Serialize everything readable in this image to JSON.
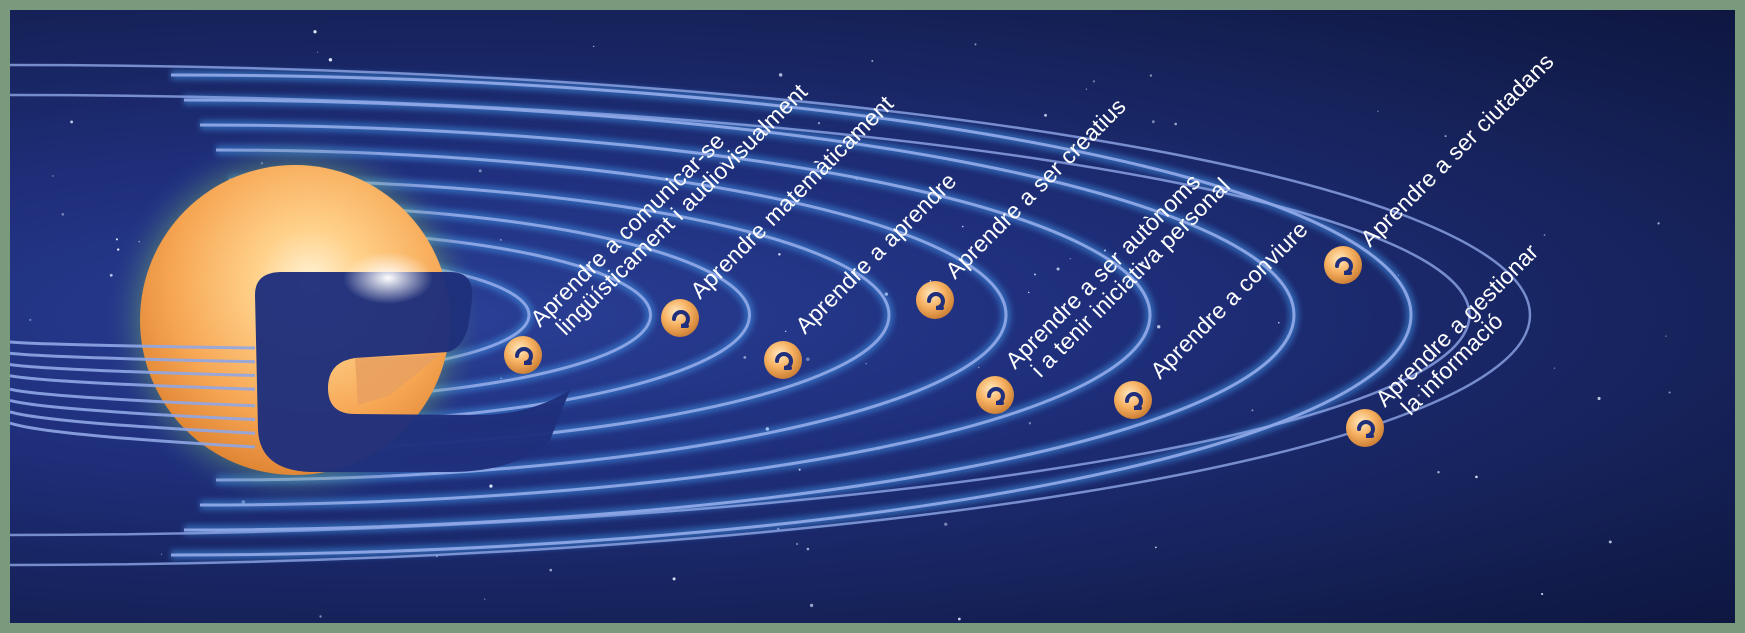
{
  "diagram": {
    "center_symbol": "e-logo-sun",
    "planet_symbol": "e-logo-planet",
    "colors": {
      "space": "#1f2f7c",
      "orbit": "#8fa6e6",
      "orbit_glow": "#3f8fe0",
      "sun": "#f6a552",
      "label": "#ffffff",
      "frame": "#7a9a7e"
    },
    "competences": [
      {
        "line1": "Aprendre a comunicar-se",
        "line2": "lingüísticament i audiovisualment"
      },
      {
        "line1": "Aprendre matemàticament",
        "line2": ""
      },
      {
        "line1": "Aprendre a aprendre",
        "line2": ""
      },
      {
        "line1": "Aprendre a ser creatius",
        "line2": ""
      },
      {
        "line1": "Aprendre a ser autònoms",
        "line2": "i a tenir iniciativa personal"
      },
      {
        "line1": "Aprendre a conviure",
        "line2": ""
      },
      {
        "line1": "Aprendre a ser ciutadans",
        "line2": ""
      },
      {
        "line1": "Aprendre a gestionar",
        "line2": "la informació"
      }
    ]
  }
}
